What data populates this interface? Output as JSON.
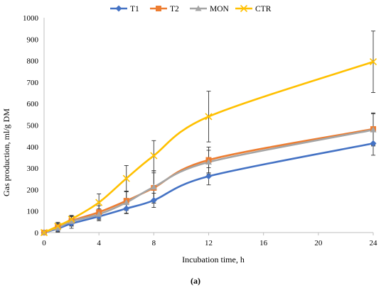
{
  "chart_data": {
    "type": "line",
    "xlabel": "Incubation time, h",
    "ylabel": "Gas production, ml/g DM",
    "caption": "(a)",
    "x": [
      0,
      1,
      2,
      4,
      6,
      8,
      12,
      24
    ],
    "xticks": [
      0,
      4,
      8,
      12,
      16,
      20,
      24
    ],
    "yticks": [
      0,
      100,
      200,
      300,
      400,
      500,
      600,
      700,
      800,
      900,
      1000
    ],
    "xlim": [
      0,
      24
    ],
    "ylim": [
      0,
      1000
    ],
    "legend_position": "top",
    "grid": false,
    "series": [
      {
        "name": "T1",
        "color": "#4472C4",
        "marker": "diamond",
        "values": [
          0,
          18,
          42,
          75,
          112,
          150,
          262,
          415
        ],
        "errors": [
          4,
          16,
          22,
          20,
          24,
          33,
          40,
          55
        ]
      },
      {
        "name": "T2",
        "color": "#ED7D31",
        "marker": "square",
        "values": [
          0,
          25,
          55,
          95,
          148,
          208,
          338,
          482
        ],
        "errors": [
          4,
          18,
          22,
          30,
          45,
          70,
          60,
          75
        ]
      },
      {
        "name": "MON",
        "color": "#A5A5A5",
        "marker": "triangle",
        "values": [
          0,
          22,
          52,
          85,
          140,
          212,
          328,
          478
        ],
        "errors": [
          4,
          18,
          22,
          25,
          50,
          75,
          55,
          75
        ]
      },
      {
        "name": "CTR",
        "color": "#FFC000",
        "marker": "x",
        "values": [
          0,
          30,
          62,
          140,
          252,
          358,
          540,
          795
        ],
        "errors": [
          4,
          18,
          18,
          40,
          60,
          70,
          118,
          143
        ]
      }
    ]
  }
}
